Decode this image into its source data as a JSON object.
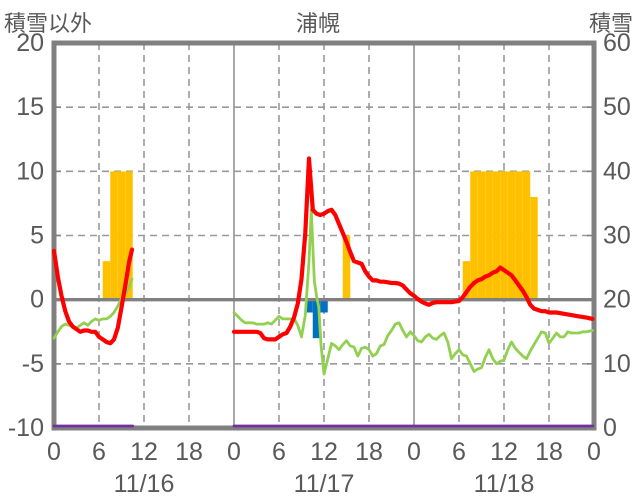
{
  "header": {
    "left_axis_title": "積雪以外",
    "chart_title": "浦幌",
    "right_axis_title": "積雪"
  },
  "chart_data": {
    "type": "combo",
    "title": "浦幌",
    "left_axis": {
      "title": "積雪以外",
      "min": -10,
      "max": 20,
      "ticks": [
        20,
        15,
        10,
        5,
        0,
        -5,
        -10
      ]
    },
    "right_axis": {
      "title": "積雪",
      "min": 0,
      "max": 60,
      "ticks": [
        60,
        50,
        40,
        30,
        20,
        10,
        0
      ]
    },
    "x_axis": {
      "day_labels": [
        "11/16",
        "11/17",
        "11/18"
      ],
      "hour_ticks": [
        0,
        6,
        12,
        18
      ],
      "end_tick": "0",
      "hours_per_day": 24
    },
    "grid": {
      "h_dashed": [
        15,
        10,
        5,
        -5
      ],
      "h_solid_zero": 0,
      "v_dashed_hours": [
        6,
        12,
        18
      ],
      "v_solid_days": [
        1,
        2
      ]
    },
    "colors": {
      "red_line": "#FF0000",
      "green_line": "#92D050",
      "orange_bars": "#FFC000",
      "blue_bars": "#0070C0",
      "purple_line": "#7030A0",
      "grid": "#999999",
      "axis": "#808080",
      "text": "#595959"
    },
    "series": {
      "bars_orange_positive": {
        "type": "bar",
        "axis": "left",
        "color_key": "orange_bars",
        "points": [
          {
            "d": 0,
            "h": 7,
            "v": 3
          },
          {
            "d": 0,
            "h": 8,
            "v": 10
          },
          {
            "d": 0,
            "h": 9,
            "v": 10
          },
          {
            "d": 0,
            "h": 10,
            "v": 10
          },
          {
            "d": 1,
            "h": 15,
            "v": 5
          },
          {
            "d": 2,
            "h": 7,
            "v": 3
          },
          {
            "d": 2,
            "h": 8,
            "v": 10
          },
          {
            "d": 2,
            "h": 9,
            "v": 10
          },
          {
            "d": 2,
            "h": 10,
            "v": 10
          },
          {
            "d": 2,
            "h": 11,
            "v": 10
          },
          {
            "d": 2,
            "h": 12,
            "v": 10
          },
          {
            "d": 2,
            "h": 13,
            "v": 10
          },
          {
            "d": 2,
            "h": 14,
            "v": 10
          },
          {
            "d": 2,
            "h": 15,
            "v": 10
          },
          {
            "d": 2,
            "h": 16,
            "v": 8
          }
        ]
      },
      "bars_blue_negative": {
        "type": "bar",
        "axis": "left",
        "color_key": "blue_bars",
        "points": [
          {
            "d": 1,
            "h": 10,
            "v": -1
          },
          {
            "d": 1,
            "h": 11,
            "v": -3
          },
          {
            "d": 1,
            "h": 12,
            "v": -1
          }
        ]
      },
      "line_red": {
        "type": "line",
        "axis": "left",
        "color_key": "red_line",
        "segments": [
          [
            [
              0,
              3.8
            ],
            [
              0.5,
              1.8
            ],
            [
              1,
              0.3
            ],
            [
              1.5,
              -0.9
            ],
            [
              2,
              -1.7
            ],
            [
              2.5,
              -2.1
            ],
            [
              3,
              -2.3
            ],
            [
              3.5,
              -2.5
            ],
            [
              4,
              -2.4
            ],
            [
              4.5,
              -2.4
            ],
            [
              5,
              -2.5
            ],
            [
              5.5,
              -2.5
            ],
            [
              6,
              -2.9
            ],
            [
              6.5,
              -3.1
            ],
            [
              7,
              -3.3
            ],
            [
              7.5,
              -3.4
            ],
            [
              8,
              -3.1
            ],
            [
              8.5,
              -2.2
            ],
            [
              9,
              -0.6
            ],
            [
              9.5,
              1.1
            ],
            [
              10,
              2.9
            ],
            [
              10.4,
              3.9
            ]
          ],
          [
            [
              24,
              -2.5
            ],
            [
              25,
              -2.5
            ],
            [
              26,
              -2.5
            ],
            [
              27,
              -2.5
            ],
            [
              27.5,
              -2.6
            ],
            [
              28,
              -3.0
            ],
            [
              28.5,
              -3.1
            ],
            [
              29,
              -3.1
            ],
            [
              29.5,
              -3.1
            ],
            [
              30,
              -2.9
            ],
            [
              30.5,
              -2.7
            ],
            [
              31,
              -2.6
            ],
            [
              31.5,
              -2.1
            ],
            [
              32,
              -1.4
            ],
            [
              32.5,
              -0.3
            ],
            [
              33,
              1.6
            ],
            [
              33.5,
              5.2
            ],
            [
              34,
              11.0
            ],
            [
              34.5,
              7.0
            ],
            [
              35,
              6.7
            ],
            [
              35.5,
              6.6
            ],
            [
              36,
              6.7
            ],
            [
              36.5,
              6.9
            ],
            [
              37,
              7.0
            ],
            [
              37.5,
              6.6
            ],
            [
              38,
              5.9
            ],
            [
              38.5,
              5.2
            ],
            [
              39,
              4.5
            ],
            [
              39.5,
              3.7
            ],
            [
              40,
              3.0
            ],
            [
              40.5,
              2.9
            ],
            [
              41,
              2.8
            ],
            [
              41.5,
              2.2
            ],
            [
              42,
              1.8
            ],
            [
              42.5,
              1.5
            ],
            [
              43,
              1.5
            ],
            [
              43.5,
              1.4
            ],
            [
              44,
              1.4
            ],
            [
              44.5,
              1.35
            ],
            [
              45,
              1.3
            ],
            [
              45.5,
              1.3
            ],
            [
              46,
              1.25
            ],
            [
              46.5,
              1.1
            ],
            [
              47,
              0.8
            ],
            [
              47.5,
              0.5
            ],
            [
              48,
              0.3
            ],
            [
              48.5,
              0.05
            ],
            [
              49,
              -0.15
            ],
            [
              49.5,
              -0.3
            ],
            [
              50,
              -0.4
            ],
            [
              50.5,
              -0.25
            ],
            [
              51,
              -0.2
            ],
            [
              51.5,
              -0.2
            ],
            [
              52,
              -0.2
            ],
            [
              52.5,
              -0.2
            ],
            [
              53,
              -0.2
            ],
            [
              53.5,
              -0.15
            ],
            [
              54,
              -0.1
            ],
            [
              54.5,
              0.2
            ],
            [
              55,
              0.6
            ],
            [
              55.5,
              1.0
            ],
            [
              56,
              1.3
            ],
            [
              56.5,
              1.5
            ],
            [
              57,
              1.6
            ],
            [
              57.5,
              1.8
            ],
            [
              58,
              1.9
            ],
            [
              58.5,
              2.1
            ],
            [
              59,
              2.2
            ],
            [
              59.5,
              2.5
            ],
            [
              60,
              2.3
            ],
            [
              60.5,
              2.1
            ],
            [
              61,
              1.9
            ],
            [
              61.5,
              1.5
            ],
            [
              62,
              1.1
            ],
            [
              62.5,
              0.7
            ],
            [
              63,
              0.2
            ],
            [
              63.5,
              -0.4
            ],
            [
              64,
              -0.7
            ],
            [
              64.5,
              -0.8
            ],
            [
              65,
              -0.9
            ],
            [
              65.5,
              -0.9
            ],
            [
              66,
              -1.0
            ],
            [
              67,
              -1.0
            ],
            [
              68,
              -1.1
            ],
            [
              69,
              -1.2
            ],
            [
              70,
              -1.3
            ],
            [
              71,
              -1.4
            ],
            [
              71.8,
              -1.5
            ]
          ]
        ]
      },
      "line_green": {
        "type": "line",
        "axis": "left",
        "color_key": "green_line",
        "segments": [
          [
            [
              0,
              -3.0
            ],
            [
              0.5,
              -2.5
            ],
            [
              1,
              -2.1
            ],
            [
              1.5,
              -1.9
            ],
            [
              2,
              -2.0
            ],
            [
              2.5,
              -2.1
            ],
            [
              3,
              -2.2
            ],
            [
              3.5,
              -2.0
            ],
            [
              4,
              -1.8
            ],
            [
              4.5,
              -2.0
            ],
            [
              5,
              -1.7
            ],
            [
              5.5,
              -1.5
            ],
            [
              6,
              -1.6
            ],
            [
              6.5,
              -1.5
            ],
            [
              7,
              -1.5
            ],
            [
              7.5,
              -1.3
            ],
            [
              8,
              -1.0
            ],
            [
              8.5,
              -0.5
            ],
            [
              9,
              0.1
            ],
            [
              9.5,
              0.4
            ],
            [
              10,
              1.0
            ],
            [
              10.4,
              1.6
            ]
          ],
          [
            [
              24,
              -1.0
            ],
            [
              24.5,
              -1.3
            ],
            [
              25,
              -1.6
            ],
            [
              25.5,
              -1.8
            ],
            [
              26,
              -1.8
            ],
            [
              26.5,
              -1.8
            ],
            [
              27,
              -1.9
            ],
            [
              27.5,
              -1.9
            ],
            [
              28,
              -1.9
            ],
            [
              28.5,
              -1.8
            ],
            [
              29,
              -1.9
            ],
            [
              29.5,
              -1.6
            ],
            [
              30,
              -1.3
            ],
            [
              30.5,
              -1.5
            ],
            [
              31,
              -1.5
            ],
            [
              31.5,
              -1.5
            ],
            [
              32,
              -1.5
            ],
            [
              32.5,
              -2.0
            ],
            [
              33,
              -2.9
            ],
            [
              33.5,
              -1.2
            ],
            [
              34,
              3.0
            ],
            [
              34.3,
              7.0
            ],
            [
              34.7,
              1.5
            ],
            [
              35,
              0.3
            ],
            [
              35.3,
              -0.6
            ],
            [
              35.6,
              -3.5
            ],
            [
              36,
              -5.8
            ],
            [
              36.5,
              -4.6
            ],
            [
              37,
              -3.4
            ],
            [
              37.5,
              -3.6
            ],
            [
              38,
              -3.9
            ],
            [
              38.5,
              -3.5
            ],
            [
              39,
              -3.2
            ],
            [
              39.5,
              -3.6
            ],
            [
              40,
              -3.7
            ],
            [
              40.5,
              -4.4
            ],
            [
              41,
              -3.8
            ],
            [
              41.5,
              -3.7
            ],
            [
              42,
              -3.9
            ],
            [
              42.5,
              -4.4
            ],
            [
              43,
              -4.2
            ],
            [
              43.5,
              -3.6
            ],
            [
              44,
              -3.5
            ],
            [
              44.5,
              -2.8
            ],
            [
              45,
              -2.4
            ],
            [
              45.5,
              -1.9
            ],
            [
              46,
              -1.8
            ],
            [
              46.5,
              -2.4
            ],
            [
              47,
              -2.9
            ],
            [
              47.5,
              -2.5
            ],
            [
              48,
              -2.8
            ],
            [
              48.5,
              -3.2
            ],
            [
              49,
              -3.3
            ],
            [
              49.5,
              -2.9
            ],
            [
              50,
              -2.7
            ],
            [
              50.5,
              -3.0
            ],
            [
              51,
              -3.1
            ],
            [
              51.5,
              -2.8
            ],
            [
              52,
              -2.6
            ],
            [
              52.5,
              -3.3
            ],
            [
              53,
              -4.6
            ],
            [
              53.5,
              -4.2
            ],
            [
              54,
              -3.9
            ],
            [
              54.5,
              -4.3
            ],
            [
              55,
              -4.4
            ],
            [
              55.5,
              -5.0
            ],
            [
              56,
              -5.6
            ],
            [
              56.5,
              -5.4
            ],
            [
              57,
              -5.3
            ],
            [
              57.5,
              -4.5
            ],
            [
              58,
              -3.9
            ],
            [
              58.5,
              -4.6
            ],
            [
              59,
              -5.0
            ],
            [
              59.5,
              -4.8
            ],
            [
              60,
              -4.7
            ],
            [
              60.5,
              -3.9
            ],
            [
              61,
              -3.3
            ],
            [
              61.5,
              -3.8
            ],
            [
              62,
              -4.1
            ],
            [
              62.5,
              -4.4
            ],
            [
              63,
              -4.6
            ],
            [
              63.5,
              -4.0
            ],
            [
              64,
              -3.5
            ],
            [
              64.5,
              -3.0
            ],
            [
              65,
              -2.5
            ],
            [
              65.5,
              -2.6
            ],
            [
              66,
              -3.4
            ],
            [
              66.5,
              -3.0
            ],
            [
              67,
              -2.6
            ],
            [
              67.5,
              -2.9
            ],
            [
              68,
              -2.9
            ],
            [
              68.5,
              -2.5
            ],
            [
              69,
              -2.6
            ],
            [
              69.5,
              -2.6
            ],
            [
              70,
              -2.6
            ],
            [
              70.5,
              -2.5
            ],
            [
              71,
              -2.5
            ],
            [
              71.8,
              -2.4
            ]
          ]
        ]
      },
      "line_purple_snow_depth": {
        "type": "line",
        "axis": "right",
        "color_key": "purple_line",
        "value": 0,
        "segments_t": [
          [
            0,
            10.5
          ],
          [
            24,
            71.85
          ]
        ]
      }
    }
  }
}
